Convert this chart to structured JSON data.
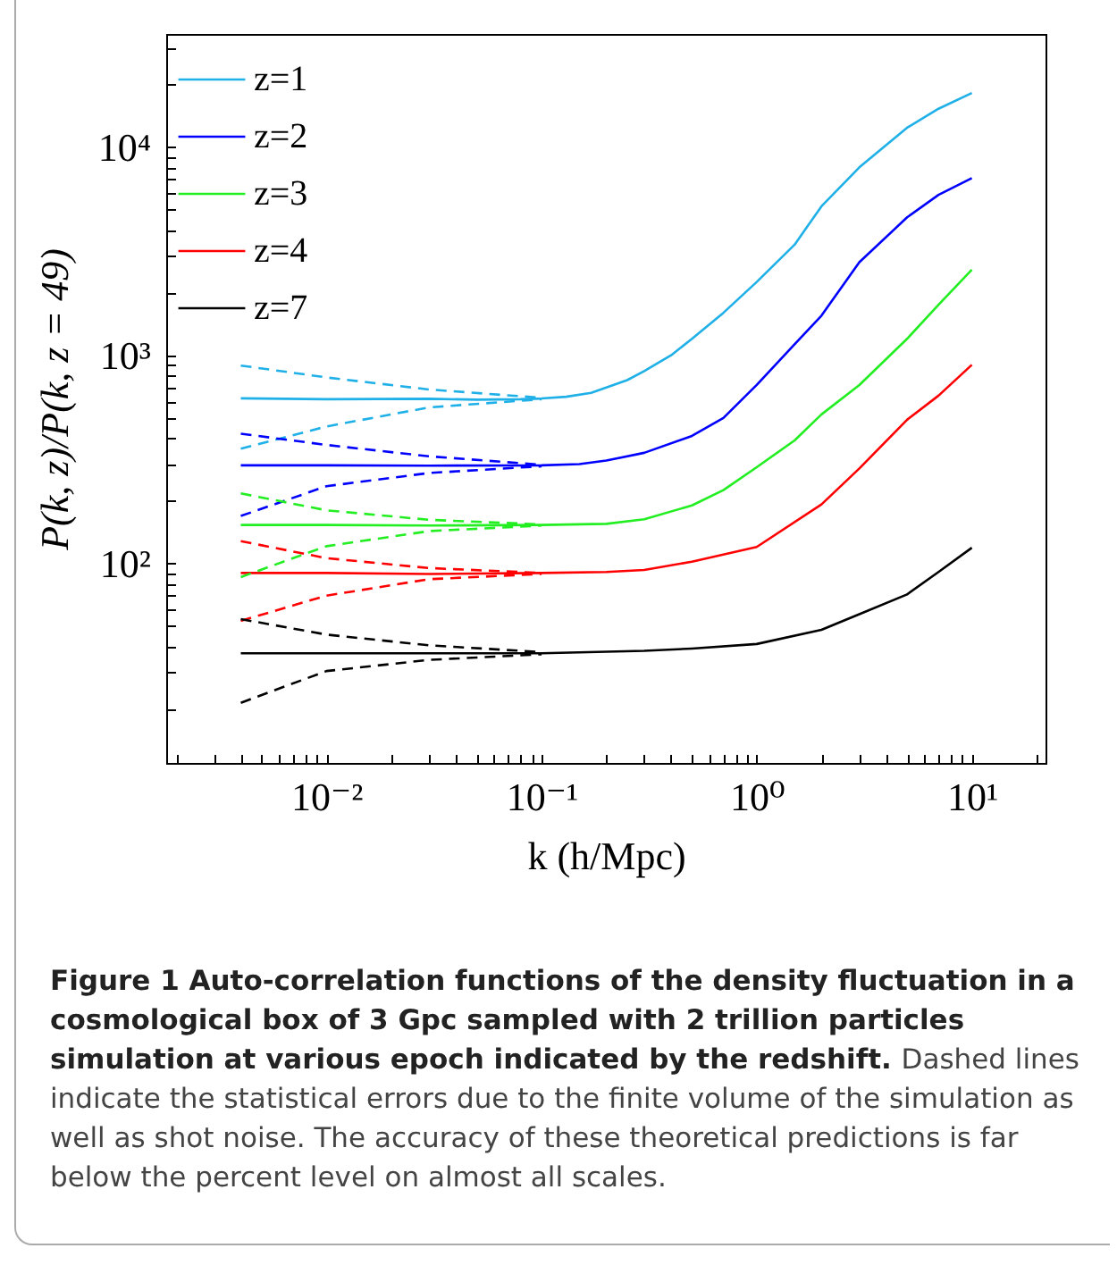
{
  "chart_data": {
    "type": "line",
    "xlabel": "k (h/Mpc)",
    "ylabel": "P(k, z)/P(k, z = 49)",
    "log": "xy",
    "legend": "top left",
    "xlim": [
      0.0018,
      22
    ],
    "ylim": [
      11,
      35000
    ],
    "xticks": [
      {
        "value": 0.002,
        "label": null
      },
      {
        "value": 0.003,
        "label": null
      },
      {
        "value": 0.004,
        "label": null
      },
      {
        "value": 0.005,
        "label": null
      },
      {
        "value": 0.006,
        "label": null
      },
      {
        "value": 0.007,
        "label": null
      },
      {
        "value": 0.008,
        "label": null
      },
      {
        "value": 0.009,
        "label": null
      },
      {
        "value": 0.01,
        "label": "10⁻²"
      },
      {
        "value": 0.02,
        "label": null
      },
      {
        "value": 0.03,
        "label": null
      },
      {
        "value": 0.04,
        "label": null
      },
      {
        "value": 0.05,
        "label": null
      },
      {
        "value": 0.06,
        "label": null
      },
      {
        "value": 0.07,
        "label": null
      },
      {
        "value": 0.08,
        "label": null
      },
      {
        "value": 0.09,
        "label": null
      },
      {
        "value": 0.1,
        "label": "10⁻¹"
      },
      {
        "value": 0.2,
        "label": null
      },
      {
        "value": 0.3,
        "label": null
      },
      {
        "value": 0.4,
        "label": null
      },
      {
        "value": 0.5,
        "label": null
      },
      {
        "value": 0.6,
        "label": null
      },
      {
        "value": 0.7,
        "label": null
      },
      {
        "value": 0.8,
        "label": null
      },
      {
        "value": 0.9,
        "label": null
      },
      {
        "value": 1,
        "label": "10⁰"
      },
      {
        "value": 2,
        "label": null
      },
      {
        "value": 3,
        "label": null
      },
      {
        "value": 4,
        "label": null
      },
      {
        "value": 5,
        "label": null
      },
      {
        "value": 6,
        "label": null
      },
      {
        "value": 7,
        "label": null
      },
      {
        "value": 8,
        "label": null
      },
      {
        "value": 9,
        "label": null
      },
      {
        "value": 10,
        "label": "10¹"
      },
      {
        "value": 20,
        "label": null
      }
    ],
    "yticks": [
      {
        "value": 20,
        "label": null
      },
      {
        "value": 30,
        "label": null
      },
      {
        "value": 40,
        "label": null
      },
      {
        "value": 50,
        "label": null
      },
      {
        "value": 60,
        "label": null
      },
      {
        "value": 70,
        "label": null
      },
      {
        "value": 80,
        "label": null
      },
      {
        "value": 90,
        "label": null
      },
      {
        "value": 100,
        "label": "10²"
      },
      {
        "value": 200,
        "label": null
      },
      {
        "value": 300,
        "label": null
      },
      {
        "value": 400,
        "label": null
      },
      {
        "value": 500,
        "label": null
      },
      {
        "value": 600,
        "label": null
      },
      {
        "value": 700,
        "label": null
      },
      {
        "value": 800,
        "label": null
      },
      {
        "value": 900,
        "label": null
      },
      {
        "value": 1000,
        "label": "10³"
      },
      {
        "value": 2000,
        "label": null
      },
      {
        "value": 3000,
        "label": null
      },
      {
        "value": 4000,
        "label": null
      },
      {
        "value": 5000,
        "label": null
      },
      {
        "value": 6000,
        "label": null
      },
      {
        "value": 7000,
        "label": null
      },
      {
        "value": 8000,
        "label": null
      },
      {
        "value": 9000,
        "label": null
      },
      {
        "value": 10000,
        "label": "10⁴"
      },
      {
        "value": 20000,
        "label": null
      },
      {
        "value": 30000,
        "label": null
      }
    ],
    "series": [
      {
        "name": "z=1",
        "color": "#1fb0e8",
        "line_style": "solid",
        "x": [
          0.004,
          0.01,
          0.03,
          0.05,
          0.08,
          0.1,
          0.13,
          0.17,
          0.2,
          0.25,
          0.3,
          0.4,
          0.5,
          0.7,
          1,
          1.5,
          2,
          3,
          5,
          7,
          10
        ],
        "values": [
          621,
          615,
          618,
          612,
          615,
          620,
          632,
          660,
          700,
          760,
          840,
          1000,
          1200,
          1600,
          2250,
          3400,
          5200,
          8000,
          12400,
          15300,
          18200
        ]
      },
      {
        "name": "z=2",
        "color": "#0000ff",
        "line_style": "solid",
        "x": [
          0.004,
          0.01,
          0.03,
          0.1,
          0.15,
          0.2,
          0.3,
          0.5,
          0.7,
          1,
          1.5,
          2,
          3,
          5,
          7,
          10
        ],
        "values": [
          296,
          296,
          295,
          296,
          300,
          312,
          340,
          410,
          500,
          720,
          1130,
          1550,
          2800,
          4600,
          5900,
          7100
        ]
      },
      {
        "name": "z=3",
        "color": "#22ee22",
        "line_style": "solid",
        "x": [
          0.004,
          0.01,
          0.03,
          0.1,
          0.2,
          0.3,
          0.5,
          0.7,
          1,
          1.5,
          2,
          3,
          5,
          7,
          10
        ],
        "values": [
          153,
          153,
          152,
          153,
          155,
          163,
          190,
          225,
          290,
          390,
          520,
          720,
          1200,
          1750,
          2580
        ]
      },
      {
        "name": "z=4",
        "color": "#ff0000",
        "line_style": "solid",
        "x": [
          0.004,
          0.01,
          0.03,
          0.1,
          0.2,
          0.3,
          0.5,
          1,
          2,
          3,
          5,
          7,
          10
        ],
        "values": [
          90,
          90,
          89,
          90,
          91,
          93,
          102,
          120,
          192,
          286,
          490,
          640,
          900
        ]
      },
      {
        "name": "z=7",
        "color": "#000000",
        "line_style": "solid",
        "x": [
          0.004,
          0.01,
          0.03,
          0.1,
          0.3,
          0.5,
          1,
          2,
          3,
          5,
          7,
          10
        ],
        "values": [
          37,
          37,
          37,
          37,
          38,
          39,
          41,
          48,
          57,
          71,
          91,
          119
        ]
      },
      {
        "color": "#1fb0e8",
        "line_style": "dashed",
        "x": [
          0.004,
          0.01,
          0.03,
          0.1
        ],
        "values": [
          893,
          783,
          685,
          625
        ]
      },
      {
        "color": "#1fb0e8",
        "line_style": "dashed",
        "x": [
          0.004,
          0.01,
          0.03,
          0.1
        ],
        "values": [
          356,
          455,
          562,
          615
        ]
      },
      {
        "color": "#0000ff",
        "line_style": "dashed",
        "x": [
          0.004,
          0.01,
          0.03,
          0.1
        ],
        "values": [
          420,
          371,
          327,
          298
        ]
      },
      {
        "color": "#0000ff",
        "line_style": "dashed",
        "x": [
          0.004,
          0.01,
          0.03,
          0.1
        ],
        "values": [
          169,
          235,
          272,
          293
        ]
      },
      {
        "color": "#22ee22",
        "line_style": "dashed",
        "x": [
          0.004,
          0.01,
          0.03,
          0.1
        ],
        "values": [
          217,
          180,
          162,
          154
        ]
      },
      {
        "color": "#22ee22",
        "line_style": "dashed",
        "x": [
          0.004,
          0.01,
          0.03,
          0.1
        ],
        "values": [
          86,
          121,
          143,
          152
        ]
      },
      {
        "color": "#ff0000",
        "line_style": "dashed",
        "x": [
          0.004,
          0.01,
          0.03,
          0.1
        ],
        "values": [
          128,
          106,
          95,
          90
        ]
      },
      {
        "color": "#ff0000",
        "line_style": "dashed",
        "x": [
          0.004,
          0.01,
          0.03,
          0.1
        ],
        "values": [
          53,
          70,
          84,
          89
        ]
      },
      {
        "color": "#000000",
        "line_style": "dashed",
        "x": [
          0.004,
          0.01,
          0.03,
          0.1
        ],
        "values": [
          54,
          45.5,
          40.4,
          37.5
        ]
      },
      {
        "color": "#000000",
        "line_style": "dashed",
        "x": [
          0.004,
          0.01,
          0.03,
          0.1
        ],
        "values": [
          21.4,
          30.4,
          34.4,
          36.6
        ]
      }
    ],
    "annotations": [
      "Figure 1 Auto-correlation functions of the density fluctuation in a cosmological box of 3 Gpc sampled with 2 trillion particles simulation at various epoch indicated by the redshift.",
      "Dashed lines indicate the statistical errors due to the finite volume of the simulation as well as shot noise. The accuracy of these theoretical predictions is far below the percent level on almost all scales."
    ]
  }
}
